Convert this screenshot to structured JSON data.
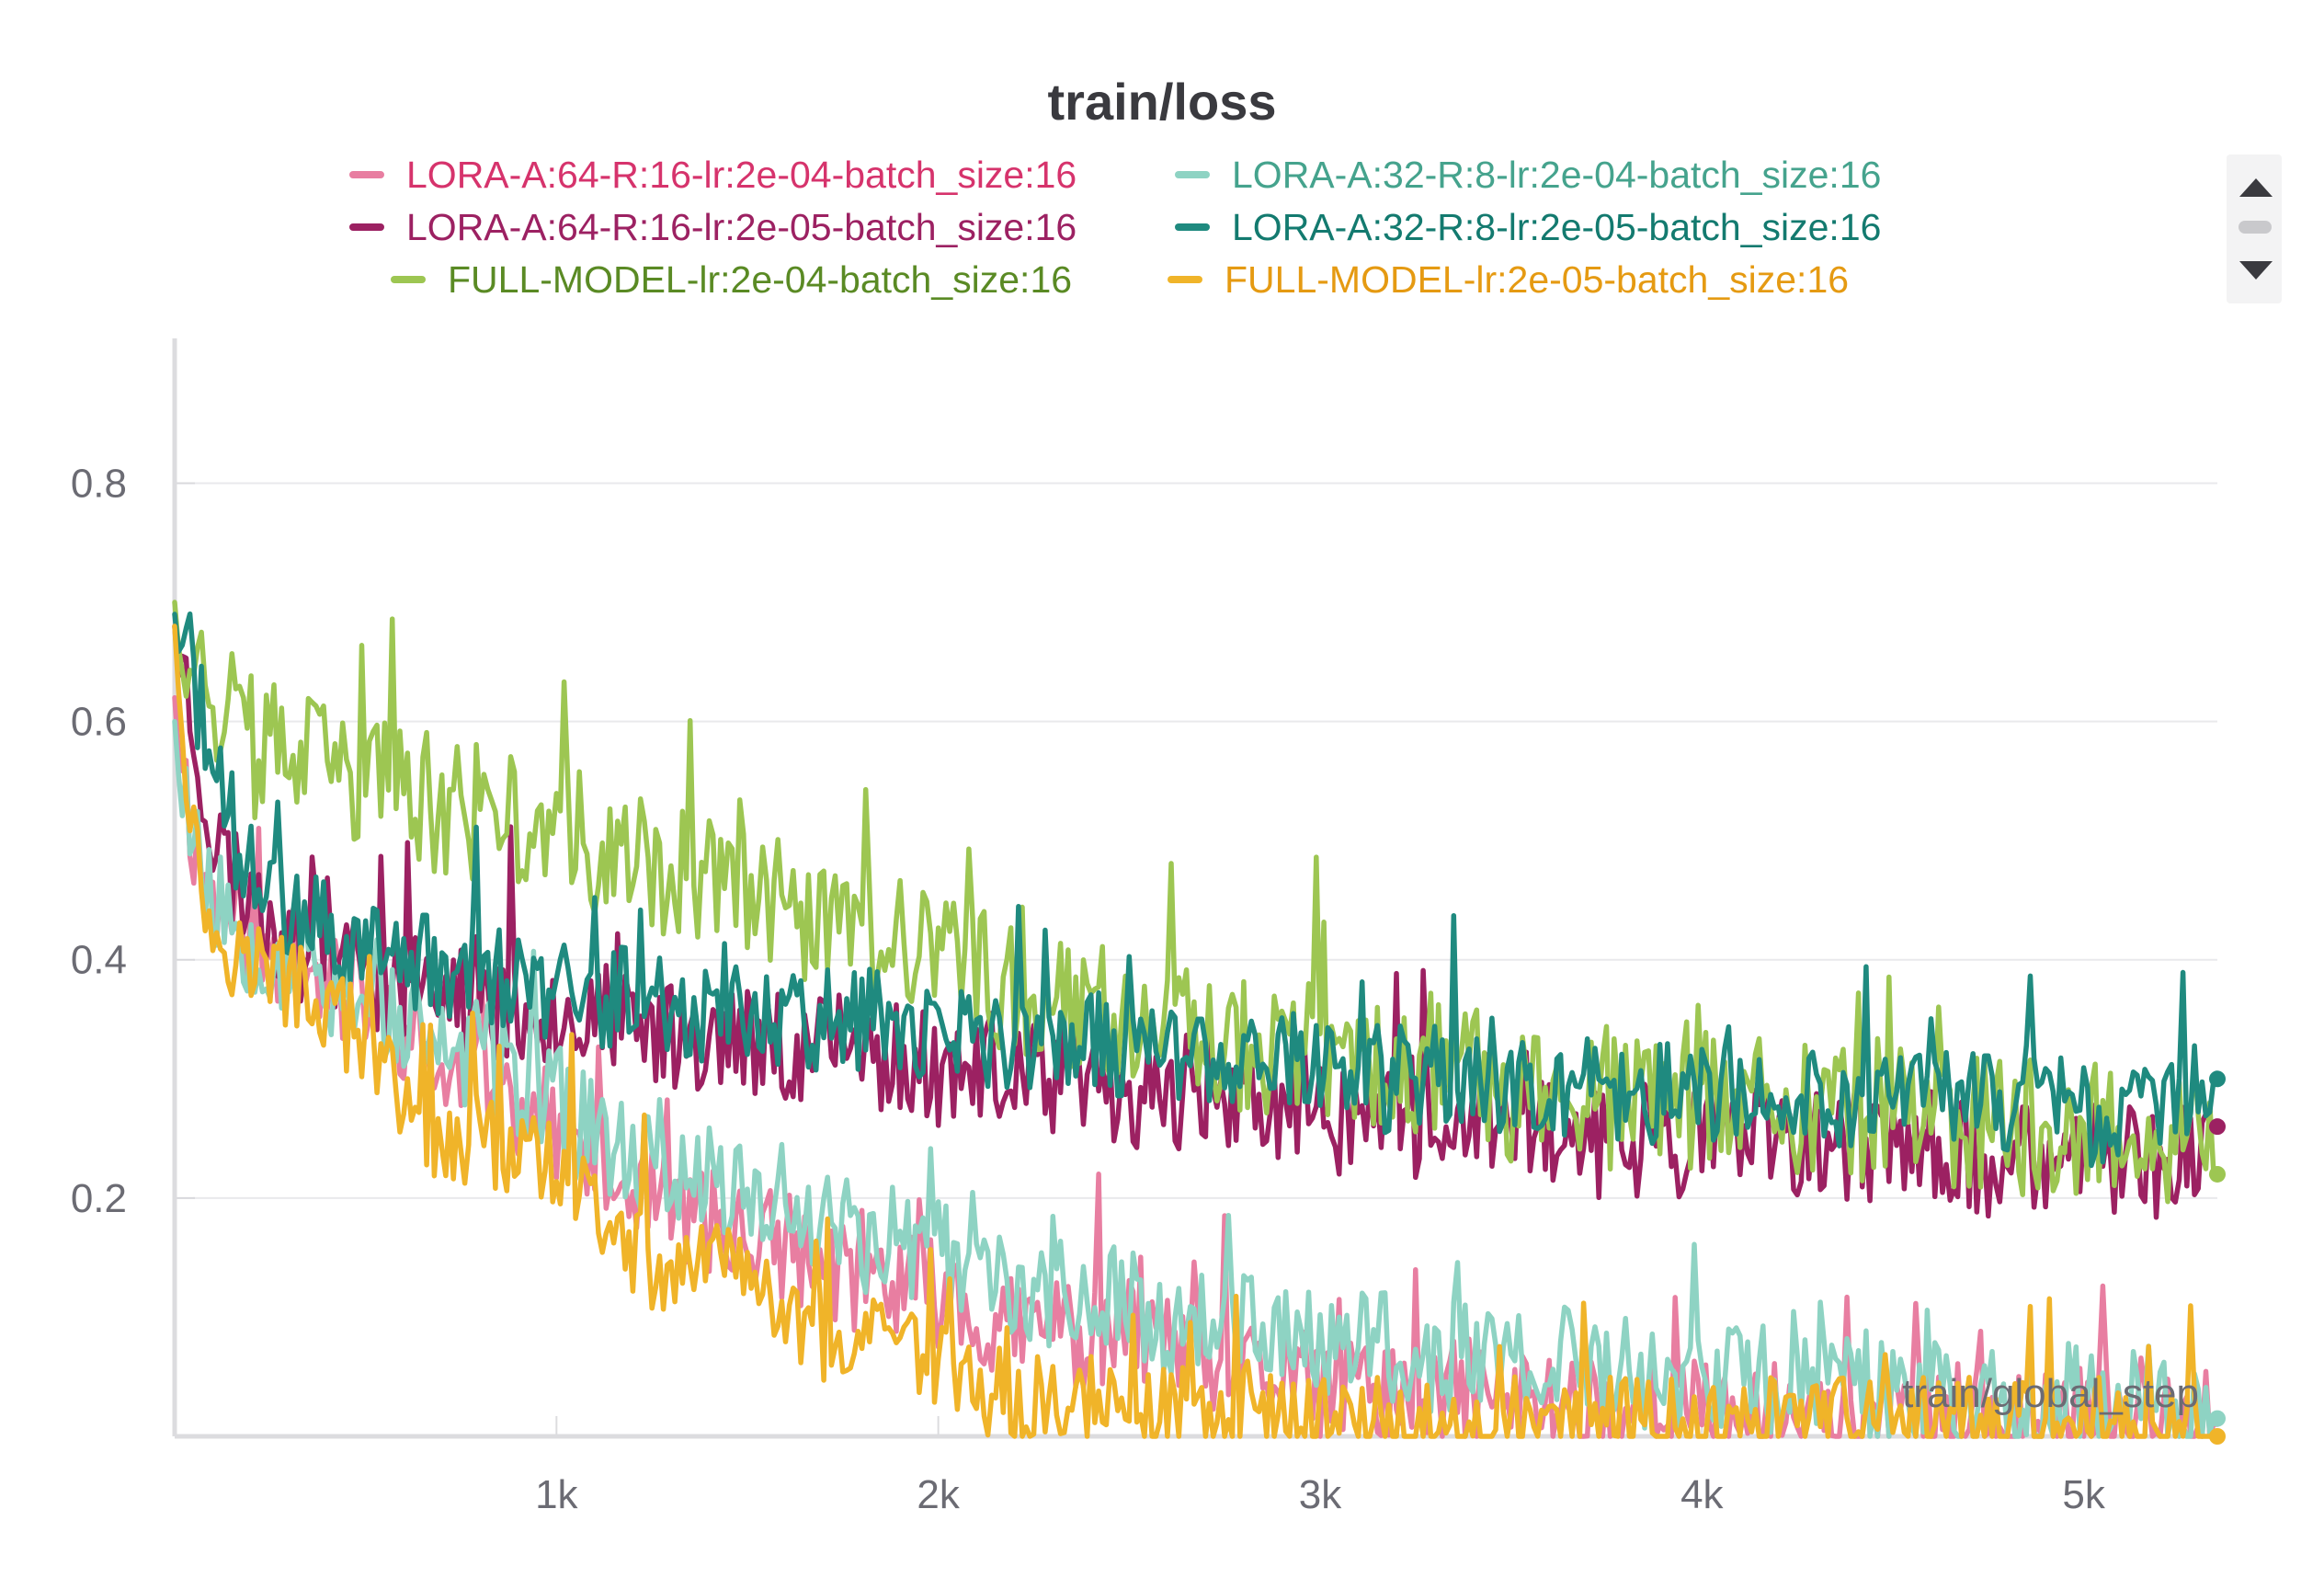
{
  "chart_data": {
    "type": "line",
    "title": "train/loss",
    "xlabel": "train/global_step",
    "ylabel": "",
    "xlim": [
      0,
      5350
    ],
    "ylim": [
      0,
      0.92
    ],
    "grid": true,
    "legend_position": "top",
    "x_ticks": [
      {
        "value": 1000,
        "label": "1k"
      },
      {
        "value": 2000,
        "label": "2k"
      },
      {
        "value": 3000,
        "label": "3k"
      },
      {
        "value": 4000,
        "label": "4k"
      },
      {
        "value": 5000,
        "label": "5k"
      }
    ],
    "y_ticks": [
      {
        "value": 0.2,
        "label": "0.2"
      },
      {
        "value": 0.4,
        "label": "0.4"
      },
      {
        "value": 0.6,
        "label": "0.6"
      },
      {
        "value": 0.8,
        "label": "0.8"
      }
    ],
    "series": [
      {
        "name": "LORA-A:64-R:16-lr:2e-04-batch_size:16",
        "color": "#e87ea1",
        "label_color": "#d6336c",
        "final_marker": false,
        "x": [
          0,
          50,
          100,
          200,
          300,
          400,
          500,
          600,
          700,
          800,
          900,
          1000,
          1100,
          1200,
          1300,
          1400,
          1500,
          1600,
          1700,
          1800,
          1900,
          2000,
          2100,
          2200,
          2300,
          2400,
          2500,
          2600,
          2700,
          2800,
          2900,
          3000,
          3100,
          3200,
          3300,
          3400,
          3500,
          3600,
          3700,
          3800,
          3900,
          4000,
          4100,
          4200,
          4300,
          4400,
          4500,
          4600,
          4700,
          4800,
          4900,
          5000,
          5100,
          5200,
          5350
        ],
        "y": [
          0.62,
          0.5,
          0.45,
          0.42,
          0.4,
          0.38,
          0.37,
          0.34,
          0.3,
          0.3,
          0.28,
          0.26,
          0.22,
          0.2,
          0.19,
          0.18,
          0.17,
          0.16,
          0.14,
          0.13,
          0.13,
          0.12,
          0.1,
          0.09,
          0.09,
          0.08,
          0.09,
          0.07,
          0.06,
          0.05,
          0.05,
          0.04,
          0.04,
          0.04,
          0.03,
          0.04,
          0.03,
          0.03,
          0.03,
          0.02,
          0.03,
          0.02,
          0.02,
          0.02,
          0.02,
          0.02,
          0.02,
          0.02,
          0.01,
          0.02,
          0.01,
          0.01,
          0.01,
          0.01,
          0.01
        ],
        "noise": 0.045,
        "seed": 11
      },
      {
        "name": "LORA-A:64-R:16-lr:2e-05-batch_size:16",
        "color": "#9c2162",
        "label_color": "#9c2162",
        "final_marker": true,
        "x": [
          0,
          50,
          100,
          200,
          300,
          400,
          500,
          600,
          700,
          800,
          900,
          1000,
          1100,
          1200,
          1300,
          1400,
          1500,
          1600,
          1700,
          1800,
          1900,
          2000,
          2100,
          2200,
          2300,
          2400,
          2500,
          2600,
          2700,
          2800,
          2900,
          3000,
          3100,
          3200,
          3300,
          3400,
          3500,
          3600,
          3700,
          3800,
          3900,
          4000,
          4100,
          4200,
          4300,
          4400,
          4500,
          4600,
          4700,
          4800,
          4900,
          5000,
          5100,
          5200,
          5350
        ],
        "y": [
          0.68,
          0.6,
          0.5,
          0.45,
          0.42,
          0.4,
          0.39,
          0.38,
          0.37,
          0.37,
          0.36,
          0.36,
          0.35,
          0.34,
          0.34,
          0.34,
          0.33,
          0.33,
          0.33,
          0.32,
          0.32,
          0.31,
          0.31,
          0.3,
          0.3,
          0.29,
          0.29,
          0.29,
          0.28,
          0.28,
          0.28,
          0.27,
          0.27,
          0.27,
          0.26,
          0.26,
          0.26,
          0.26,
          0.25,
          0.25,
          0.25,
          0.25,
          0.25,
          0.24,
          0.24,
          0.24,
          0.24,
          0.24,
          0.23,
          0.23,
          0.23,
          0.23,
          0.23,
          0.23,
          0.26
        ],
        "noise": 0.05,
        "seed": 23
      },
      {
        "name": "FULL-MODEL-lr:2e-04-batch_size:16",
        "color": "#9dc652",
        "label_color": "#5a8a24",
        "final_marker": true,
        "x": [
          0,
          50,
          100,
          200,
          300,
          400,
          500,
          600,
          700,
          800,
          900,
          1000,
          1100,
          1200,
          1300,
          1400,
          1500,
          1600,
          1700,
          1800,
          1900,
          2000,
          2100,
          2200,
          2300,
          2400,
          2500,
          2600,
          2700,
          2800,
          2900,
          3000,
          3100,
          3200,
          3300,
          3400,
          3500,
          3600,
          3700,
          3800,
          3900,
          4000,
          4100,
          4200,
          4300,
          4400,
          4500,
          4600,
          4700,
          4800,
          4900,
          5000,
          5100,
          5200,
          5350
        ],
        "y": [
          0.7,
          0.66,
          0.62,
          0.58,
          0.57,
          0.56,
          0.55,
          0.54,
          0.53,
          0.52,
          0.51,
          0.5,
          0.49,
          0.48,
          0.47,
          0.46,
          0.45,
          0.44,
          0.43,
          0.42,
          0.41,
          0.4,
          0.39,
          0.38,
          0.37,
          0.36,
          0.36,
          0.35,
          0.34,
          0.33,
          0.32,
          0.32,
          0.31,
          0.31,
          0.3,
          0.3,
          0.29,
          0.29,
          0.29,
          0.28,
          0.28,
          0.28,
          0.28,
          0.27,
          0.27,
          0.27,
          0.27,
          0.27,
          0.26,
          0.26,
          0.26,
          0.26,
          0.26,
          0.26,
          0.22
        ],
        "noise": 0.06,
        "seed": 37
      },
      {
        "name": "LORA-A:32-R:8-lr:2e-04-batch_size:16",
        "color": "#8ed3c3",
        "label_color": "#45a38d",
        "final_marker": true,
        "x": [
          0,
          50,
          100,
          200,
          300,
          400,
          500,
          600,
          700,
          800,
          900,
          1000,
          1100,
          1200,
          1300,
          1400,
          1500,
          1600,
          1700,
          1800,
          1900,
          2000,
          2100,
          2200,
          2300,
          2400,
          2500,
          2600,
          2700,
          2800,
          2900,
          3000,
          3100,
          3200,
          3300,
          3400,
          3500,
          3600,
          3700,
          3800,
          3900,
          4000,
          4100,
          4200,
          4300,
          4400,
          4500,
          4600,
          4700,
          4800,
          4900,
          5000,
          5100,
          5200,
          5350
        ],
        "y": [
          0.6,
          0.5,
          0.45,
          0.42,
          0.4,
          0.38,
          0.37,
          0.35,
          0.32,
          0.32,
          0.3,
          0.28,
          0.25,
          0.24,
          0.23,
          0.22,
          0.21,
          0.2,
          0.19,
          0.17,
          0.16,
          0.15,
          0.13,
          0.13,
          0.12,
          0.12,
          0.11,
          0.1,
          0.1,
          0.09,
          0.09,
          0.08,
          0.08,
          0.07,
          0.07,
          0.07,
          0.06,
          0.06,
          0.06,
          0.05,
          0.05,
          0.05,
          0.05,
          0.04,
          0.04,
          0.04,
          0.04,
          0.04,
          0.03,
          0.03,
          0.03,
          0.03,
          0.03,
          0.03,
          0.015
        ],
        "noise": 0.05,
        "seed": 53
      },
      {
        "name": "LORA-A:32-R:8-lr:2e-05-batch_size:16",
        "color": "#1f8a7f",
        "label_color": "#137a6f",
        "final_marker": true,
        "x": [
          0,
          50,
          100,
          200,
          300,
          400,
          500,
          600,
          700,
          800,
          900,
          1000,
          1100,
          1200,
          1300,
          1400,
          1500,
          1600,
          1700,
          1800,
          1900,
          2000,
          2100,
          2200,
          2300,
          2400,
          2500,
          2600,
          2700,
          2800,
          2900,
          3000,
          3100,
          3200,
          3300,
          3400,
          3500,
          3600,
          3700,
          3800,
          3900,
          4000,
          4100,
          4200,
          4300,
          4400,
          4500,
          4600,
          4700,
          4800,
          4900,
          5000,
          5100,
          5200,
          5350
        ],
        "y": [
          0.69,
          0.64,
          0.55,
          0.47,
          0.44,
          0.42,
          0.41,
          0.4,
          0.39,
          0.39,
          0.38,
          0.38,
          0.37,
          0.37,
          0.36,
          0.36,
          0.36,
          0.35,
          0.35,
          0.35,
          0.34,
          0.34,
          0.34,
          0.33,
          0.33,
          0.33,
          0.32,
          0.32,
          0.32,
          0.31,
          0.31,
          0.31,
          0.3,
          0.3,
          0.3,
          0.3,
          0.3,
          0.29,
          0.29,
          0.29,
          0.29,
          0.29,
          0.29,
          0.28,
          0.28,
          0.28,
          0.28,
          0.28,
          0.28,
          0.28,
          0.28,
          0.27,
          0.27,
          0.27,
          0.3
        ],
        "noise": 0.045,
        "seed": 71
      },
      {
        "name": "FULL-MODEL-lr:2e-05-batch_size:16",
        "color": "#f0b429",
        "label_color": "#e59a12",
        "final_marker": true,
        "x": [
          0,
          50,
          100,
          200,
          300,
          400,
          500,
          600,
          700,
          800,
          900,
          1000,
          1100,
          1200,
          1300,
          1400,
          1500,
          1600,
          1700,
          1800,
          1900,
          2000,
          2100,
          2200,
          2300,
          2400,
          2500,
          2600,
          2700,
          2800,
          2900,
          3000,
          3100,
          3200,
          3300,
          3400,
          3500,
          3600,
          3700,
          3800,
          3900,
          4000,
          4100,
          4200,
          4300,
          4400,
          4500,
          4600,
          4700,
          4800,
          4900,
          5000,
          5100,
          5200,
          5350
        ],
        "y": [
          0.68,
          0.5,
          0.42,
          0.4,
          0.38,
          0.36,
          0.33,
          0.28,
          0.25,
          0.25,
          0.24,
          0.23,
          0.18,
          0.15,
          0.14,
          0.14,
          0.13,
          0.1,
          0.08,
          0.08,
          0.07,
          0.06,
          0.04,
          0.03,
          0.03,
          0.03,
          0.02,
          0.02,
          0.02,
          0.02,
          0.01,
          0.01,
          0.01,
          0.01,
          0.01,
          0.01,
          0.01,
          0.01,
          0.01,
          0.01,
          0.01,
          0.01,
          0.01,
          0.01,
          0.01,
          0.01,
          0.01,
          0.01,
          0.01,
          0.01,
          0.01,
          0.01,
          0.01,
          0.01,
          0.0
        ],
        "noise": 0.04,
        "seed": 97
      }
    ]
  }
}
